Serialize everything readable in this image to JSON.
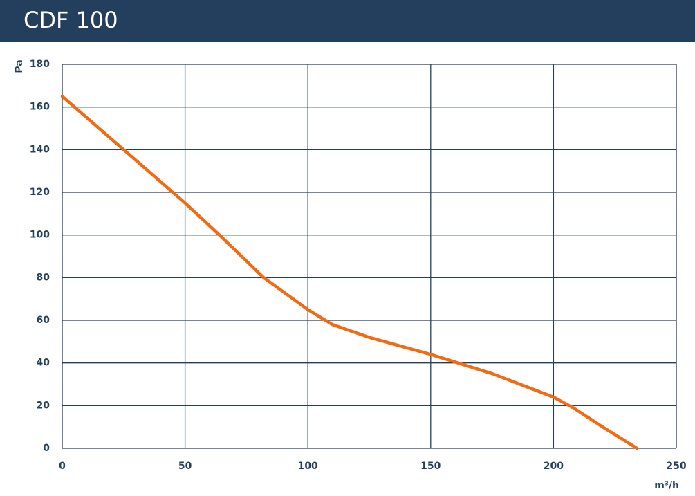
{
  "chart_data": {
    "type": "line",
    "title": "CDF 100",
    "x_label": "m³/h",
    "y_label": "Pa",
    "x": [
      0,
      25,
      50,
      64,
      82,
      100,
      110,
      125,
      150,
      175,
      200,
      208,
      220,
      234
    ],
    "series": [
      {
        "name": "CDF 100",
        "color": "#f26b12",
        "values": [
          165,
          140,
          115,
          100,
          80,
          65,
          58,
          52,
          44,
          35,
          24,
          19,
          10,
          0
        ]
      }
    ],
    "xlim": [
      0,
      250
    ],
    "xticks": [
      0,
      50,
      100,
      150,
      200,
      250
    ],
    "ylim": [
      0,
      180
    ],
    "yticks": [
      0,
      20,
      40,
      60,
      80,
      100,
      120,
      140,
      160,
      180
    ],
    "grid": true
  }
}
